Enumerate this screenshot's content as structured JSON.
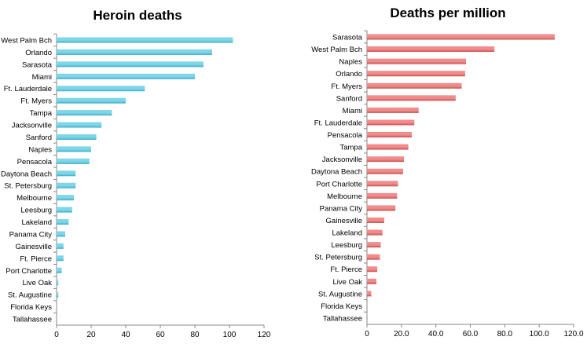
{
  "chart_data": [
    {
      "type": "bar",
      "orientation": "horizontal",
      "title": "Heroin deaths",
      "xlabel": "",
      "ylabel": "",
      "xlim": [
        0,
        120
      ],
      "tick_labels": [
        "0",
        "20",
        "40",
        "60",
        "80",
        "100",
        "120"
      ],
      "color": "#7fd6e8",
      "categories": [
        "West Palm Bch",
        "Orlando",
        "Sarasota",
        "Miami",
        "Ft. Lauderdale",
        "Ft. Myers",
        "Tampa",
        "Jacksonville",
        "Sanford",
        "Naples",
        "Pensacola",
        "Daytona Beach",
        "St. Petersburg",
        "Melbourne",
        "Leesburg",
        "Lakeland",
        "Panama City",
        "Gainesville",
        "Ft. Pierce",
        "Port Charlotte",
        "Live Oak",
        "St. Augustine",
        "Florida Keys",
        "Tallahassee"
      ],
      "values": [
        102,
        90,
        85,
        80,
        51,
        40,
        32,
        26,
        23,
        20,
        19,
        11,
        11,
        10,
        9,
        7,
        5,
        4,
        4,
        3,
        1,
        1,
        0,
        0
      ]
    },
    {
      "type": "bar",
      "orientation": "horizontal",
      "title": "Deaths per million",
      "xlabel": "",
      "ylabel": "",
      "xlim": [
        0,
        120
      ],
      "tick_labels": [
        "0",
        "20.0",
        "40.0",
        "60.0",
        "80.0",
        "100.0",
        "120.0"
      ],
      "color": "#f08c8c",
      "categories": [
        "Sarasota",
        "West Palm Bch",
        "Naples",
        "Orlando",
        "Ft. Myers",
        "Sanford",
        "Miami",
        "Ft. Lauderdale",
        "Pensacola",
        "Tampa",
        "Jacksonville",
        "Daytona Beach",
        "Port Charlotte",
        "Melbourne",
        "Panama City",
        "Gainesville",
        "Lakeland",
        "Leesburg",
        "St. Petersburg",
        "Ft. Pierce",
        "Live Oak",
        "St. Augustine",
        "Florida Keys",
        "Tallahassee"
      ],
      "values": [
        109,
        74,
        57.5,
        57,
        55,
        51.5,
        30,
        27.5,
        26,
        24,
        21.5,
        21,
        18,
        17.5,
        16.5,
        10,
        9,
        8,
        7.5,
        6,
        5.5,
        2.5,
        0,
        0
      ]
    }
  ]
}
